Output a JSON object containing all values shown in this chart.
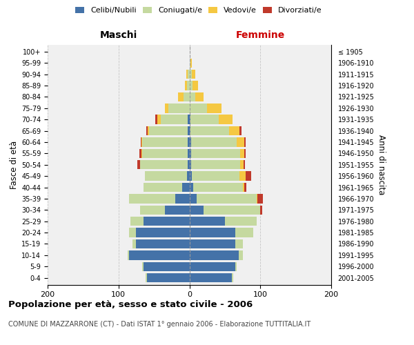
{
  "age_groups": [
    "0-4",
    "5-9",
    "10-14",
    "15-19",
    "20-24",
    "25-29",
    "30-34",
    "35-39",
    "40-44",
    "45-49",
    "50-54",
    "55-59",
    "60-64",
    "65-69",
    "70-74",
    "75-79",
    "80-84",
    "85-89",
    "90-94",
    "95-99",
    "100+"
  ],
  "birth_years": [
    "2001-2005",
    "1996-2000",
    "1991-1995",
    "1986-1990",
    "1981-1985",
    "1976-1980",
    "1971-1975",
    "1966-1970",
    "1961-1965",
    "1956-1960",
    "1951-1955",
    "1946-1950",
    "1941-1945",
    "1936-1940",
    "1931-1935",
    "1926-1930",
    "1921-1925",
    "1916-1920",
    "1911-1915",
    "1906-1910",
    "≤ 1905"
  ],
  "males": {
    "celibi": [
      60,
      65,
      85,
      75,
      75,
      65,
      35,
      20,
      10,
      3,
      2,
      2,
      2,
      2,
      2,
      0,
      0,
      0,
      0,
      0,
      0
    ],
    "coniugati": [
      2,
      2,
      2,
      5,
      10,
      18,
      35,
      65,
      55,
      60,
      68,
      65,
      65,
      55,
      38,
      30,
      8,
      3,
      2,
      0,
      0
    ],
    "vedovi": [
      0,
      0,
      0,
      0,
      0,
      0,
      0,
      0,
      0,
      0,
      0,
      1,
      1,
      2,
      5,
      5,
      8,
      3,
      2,
      0,
      0
    ],
    "divorziati": [
      0,
      0,
      0,
      0,
      0,
      0,
      0,
      0,
      0,
      0,
      3,
      3,
      1,
      2,
      3,
      0,
      0,
      0,
      0,
      0,
      0
    ]
  },
  "females": {
    "nubili": [
      60,
      65,
      70,
      65,
      65,
      50,
      20,
      10,
      5,
      3,
      2,
      2,
      2,
      1,
      1,
      0,
      0,
      0,
      0,
      0,
      0
    ],
    "coniugate": [
      2,
      2,
      5,
      10,
      25,
      45,
      80,
      85,
      70,
      68,
      70,
      70,
      65,
      55,
      40,
      25,
      8,
      4,
      3,
      1,
      0
    ],
    "vedove": [
      0,
      0,
      0,
      0,
      0,
      0,
      0,
      1,
      2,
      8,
      4,
      5,
      10,
      15,
      20,
      20,
      12,
      8,
      5,
      2,
      0
    ],
    "divorziate": [
      0,
      0,
      0,
      0,
      0,
      0,
      3,
      8,
      3,
      8,
      2,
      2,
      2,
      2,
      0,
      0,
      0,
      0,
      0,
      0,
      0
    ]
  },
  "colors": {
    "celibi_nubili": "#4472a8",
    "coniugati": "#c5d9a0",
    "vedovi": "#f5c842",
    "divorziati": "#c0392b"
  },
  "xlim": 200,
  "title": "Popolazione per età, sesso e stato civile - 2006",
  "subtitle": "COMUNE DI MAZZARRONE (CT) - Dati ISTAT 1° gennaio 2006 - Elaborazione TUTTITALIA.IT",
  "ylabel_left": "Fasce di età",
  "ylabel_right": "Anni di nascita",
  "xlabel_left": "Maschi",
  "xlabel_right": "Femmine"
}
